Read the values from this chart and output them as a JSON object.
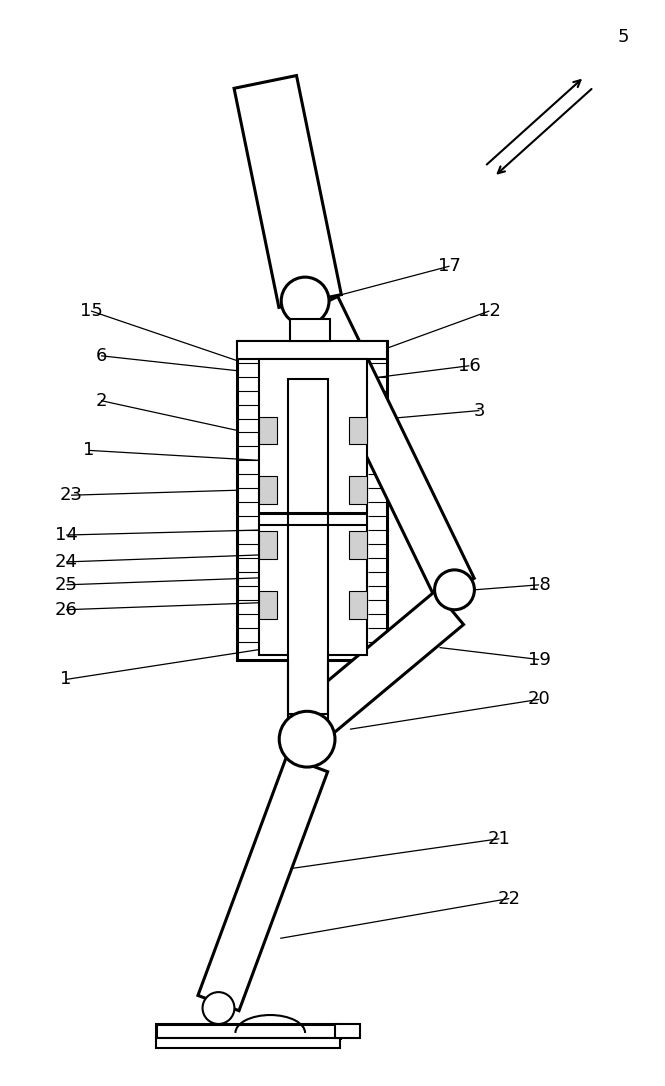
{
  "bg_color": "#ffffff",
  "line_color": "#000000",
  "lw": 1.5,
  "lw2": 2.2,
  "fig_w": 6.65,
  "fig_h": 10.86
}
